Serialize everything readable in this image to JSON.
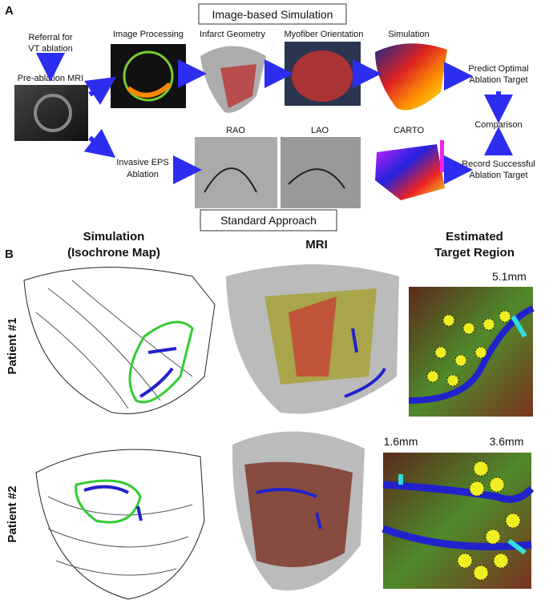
{
  "panel_a": {
    "label": "A",
    "title": "Image-based Simulation",
    "referral": [
      "Referral for",
      "VT ablation"
    ],
    "pre_ablation": "Pre-ablation MRI",
    "steps": [
      "Image Processing",
      "Infarct Geometry",
      "Myofiber Orientation",
      "Simulation"
    ],
    "predict": [
      "Predict Optimal",
      "Ablation Target"
    ],
    "comparison": "Comparison",
    "record": [
      "Record Successful",
      "Ablation Target"
    ],
    "invasive": [
      "Invasive EPS",
      "Ablation"
    ],
    "views": [
      "RAO",
      "LAO",
      "CARTO"
    ],
    "standard": "Standard Approach"
  },
  "panel_b": {
    "label": "B",
    "col_simulation": [
      "Simulation",
      "(Isochrone Map)"
    ],
    "col_mri": "MRI",
    "col_target": [
      "Estimated",
      "Target Region"
    ],
    "patients": [
      "Patient #1",
      "Patient #2"
    ],
    "distances_p1": [
      "5.1mm"
    ],
    "distances_p2": [
      "1.6mm",
      "3.6mm"
    ]
  }
}
